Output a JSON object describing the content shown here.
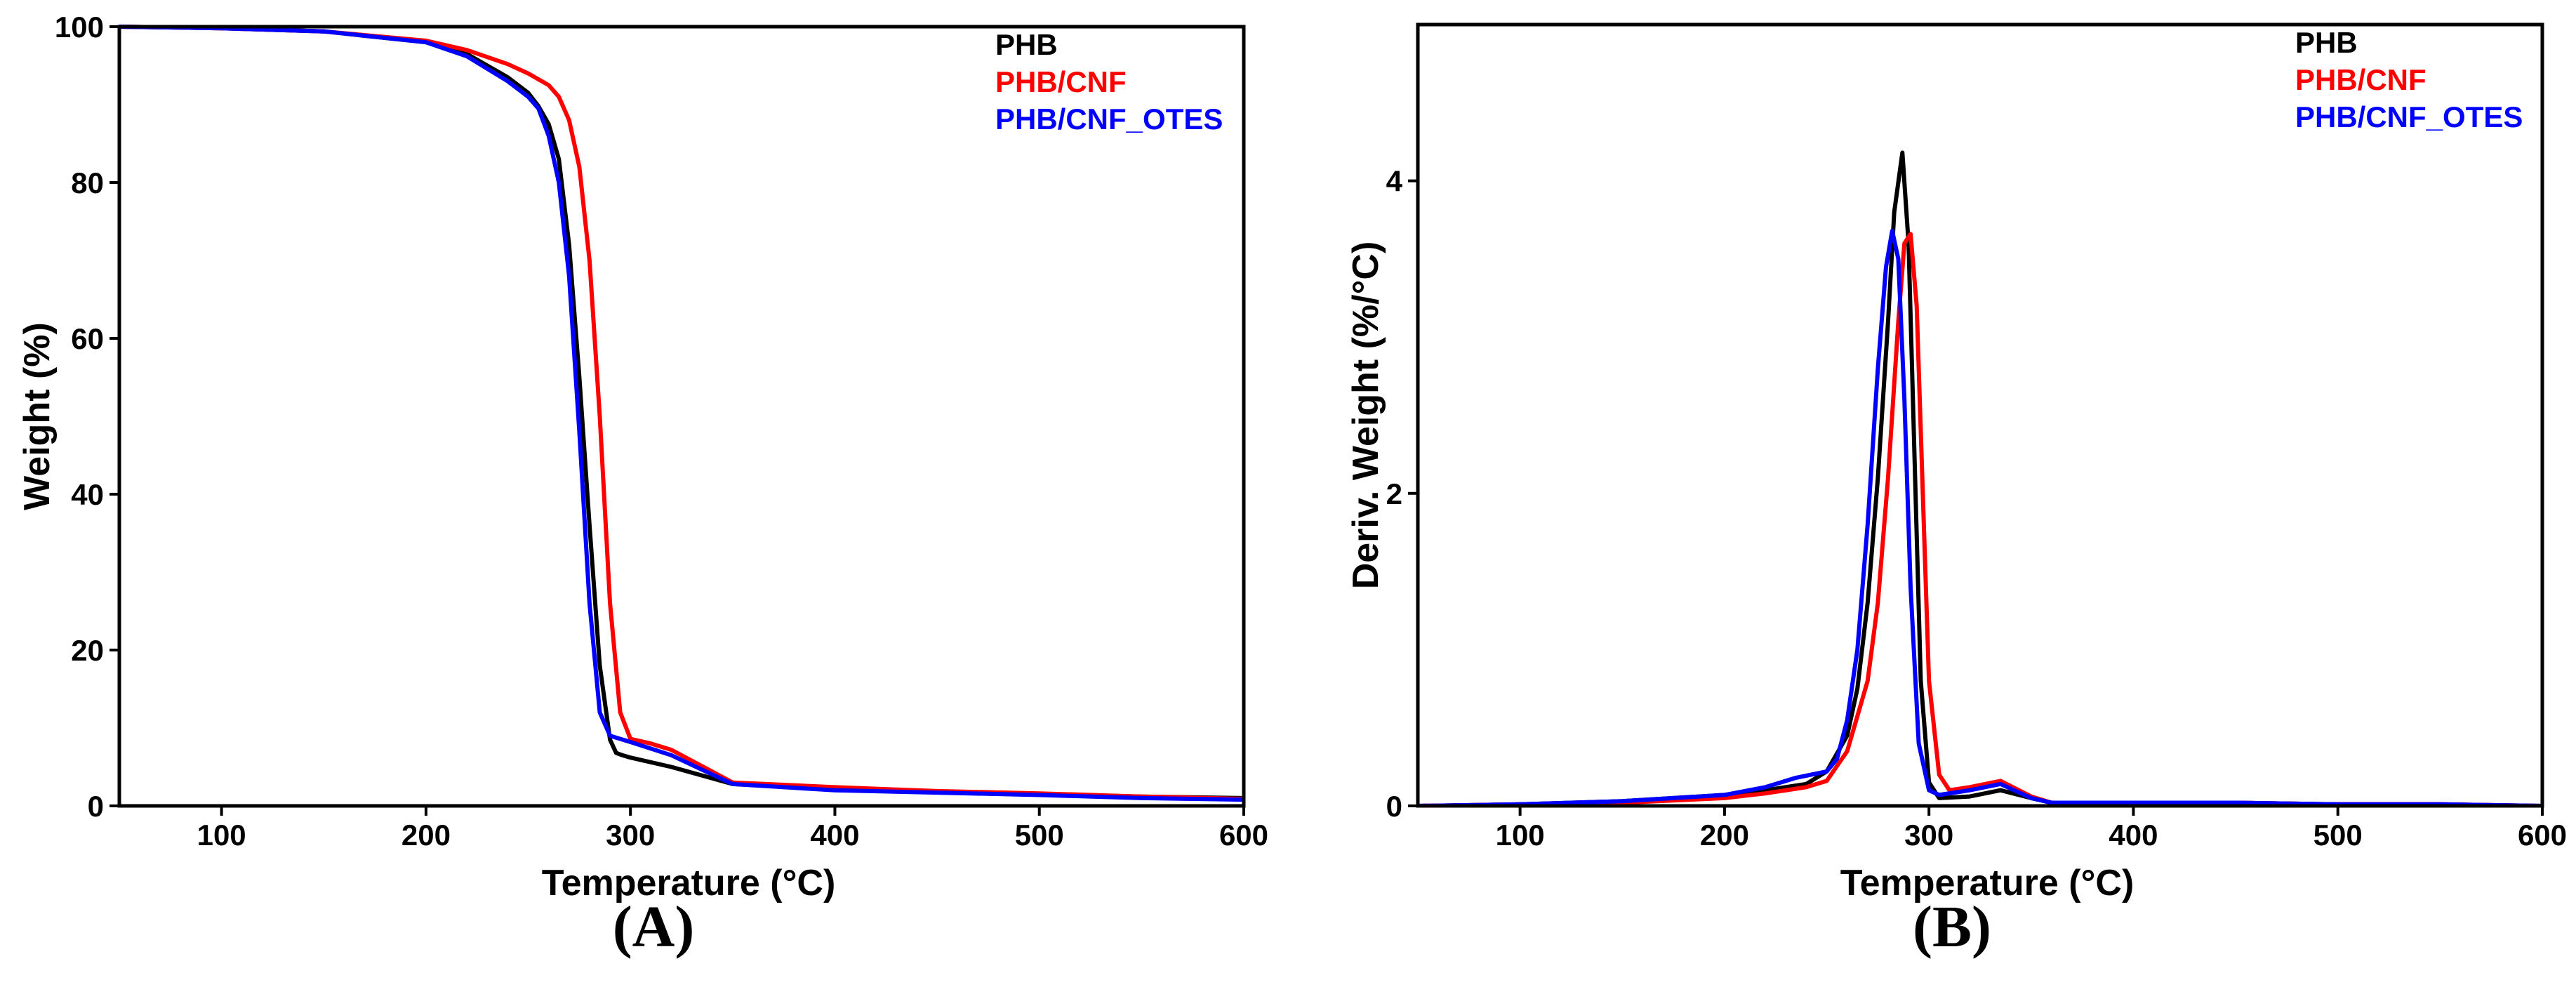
{
  "chart_data": [
    {
      "type": "line",
      "panel_label": "(A)",
      "xlabel": "Temperature (°C)",
      "ylabel": "Weight (%)",
      "xlim": [
        50,
        600
      ],
      "ylim": [
        0,
        100
      ],
      "xticks": [
        100,
        200,
        300,
        400,
        500,
        600
      ],
      "yticks": [
        0,
        20,
        40,
        60,
        80,
        100
      ],
      "legend": "top-right",
      "series": [
        {
          "name": "PHB",
          "color": "#000000",
          "x": [
            50,
            100,
            150,
            200,
            220,
            240,
            250,
            255,
            260,
            265,
            270,
            275,
            280,
            285,
            290,
            293,
            296,
            300,
            320,
            350,
            400,
            450,
            500,
            550,
            600
          ],
          "y": [
            100,
            99.8,
            99.4,
            98.0,
            96.5,
            93.5,
            91.5,
            89.8,
            87.5,
            83.0,
            72.0,
            55.0,
            36.0,
            18.0,
            8.5,
            6.8,
            6.5,
            6.2,
            5.0,
            2.8,
            2.2,
            1.8,
            1.5,
            1.2,
            1.0
          ]
        },
        {
          "name": "PHB/CNF",
          "color": "#ff0000",
          "x": [
            50,
            100,
            150,
            200,
            220,
            240,
            250,
            260,
            265,
            270,
            275,
            280,
            285,
            290,
            295,
            300,
            310,
            320,
            350,
            400,
            450,
            500,
            550,
            600
          ],
          "y": [
            100,
            99.8,
            99.4,
            98.2,
            97.0,
            95.2,
            94.0,
            92.5,
            91.0,
            88.0,
            82.0,
            70.0,
            50.0,
            26.0,
            12.0,
            8.6,
            8.0,
            7.2,
            3.0,
            2.4,
            1.9,
            1.6,
            1.2,
            0.9
          ]
        },
        {
          "name": "PHB/CNF_OTES",
          "color": "#0000ff",
          "x": [
            50,
            100,
            150,
            200,
            220,
            240,
            250,
            255,
            260,
            265,
            270,
            275,
            280,
            285,
            290,
            300,
            320,
            350,
            400,
            450,
            500,
            550,
            600
          ],
          "y": [
            100,
            99.8,
            99.4,
            98.0,
            96.2,
            93.0,
            91.0,
            89.5,
            86.0,
            80.0,
            68.0,
            48.0,
            26.0,
            12.0,
            9.0,
            8.2,
            6.5,
            2.8,
            2.0,
            1.7,
            1.4,
            1.0,
            0.8
          ]
        }
      ]
    },
    {
      "type": "line",
      "panel_label": "(B)",
      "xlabel": "Temperature (°C)",
      "ylabel": "Deriv. Weight (%/°C)",
      "xlim": [
        50,
        600
      ],
      "ylim": [
        0,
        5
      ],
      "xticks": [
        100,
        200,
        300,
        400,
        500,
        600
      ],
      "yticks": [
        0,
        2,
        4
      ],
      "legend": "top-right",
      "series": [
        {
          "name": "PHB",
          "color": "#000000",
          "x": [
            50,
            100,
            150,
            200,
            220,
            240,
            250,
            260,
            265,
            270,
            275,
            280,
            283,
            287,
            290,
            293,
            296,
            300,
            305,
            320,
            335,
            350,
            360,
            400,
            450,
            500,
            550,
            600
          ],
          "y": [
            0,
            0.01,
            0.03,
            0.07,
            0.1,
            0.14,
            0.22,
            0.45,
            0.75,
            1.3,
            2.1,
            3.1,
            3.8,
            4.18,
            3.6,
            2.2,
            0.8,
            0.15,
            0.05,
            0.06,
            0.1,
            0.05,
            0.02,
            0.02,
            0.02,
            0.01,
            0.01,
            0.0
          ]
        },
        {
          "name": "PHB/CNF",
          "color": "#ff0000",
          "x": [
            50,
            100,
            150,
            200,
            220,
            240,
            250,
            260,
            270,
            275,
            280,
            285,
            288,
            291,
            294,
            297,
            300,
            305,
            310,
            320,
            335,
            350,
            360,
            400,
            450,
            500,
            550,
            600
          ],
          "y": [
            0,
            0.01,
            0.02,
            0.05,
            0.08,
            0.12,
            0.16,
            0.35,
            0.8,
            1.3,
            2.1,
            3.1,
            3.6,
            3.66,
            3.2,
            2.0,
            0.8,
            0.2,
            0.1,
            0.12,
            0.16,
            0.06,
            0.02,
            0.02,
            0.02,
            0.01,
            0.01,
            0.0
          ]
        },
        {
          "name": "PHB/CNF_OTES",
          "color": "#0000ff",
          "x": [
            50,
            100,
            150,
            200,
            220,
            235,
            250,
            255,
            260,
            265,
            270,
            275,
            279,
            282,
            285,
            288,
            291,
            295,
            300,
            305,
            320,
            335,
            350,
            360,
            400,
            450,
            500,
            550,
            600
          ],
          "y": [
            0,
            0.01,
            0.03,
            0.07,
            0.12,
            0.18,
            0.22,
            0.3,
            0.55,
            1.0,
            1.8,
            2.8,
            3.45,
            3.68,
            3.5,
            2.6,
            1.4,
            0.4,
            0.1,
            0.07,
            0.1,
            0.14,
            0.05,
            0.02,
            0.02,
            0.02,
            0.01,
            0.01,
            0.0
          ]
        }
      ]
    }
  ]
}
